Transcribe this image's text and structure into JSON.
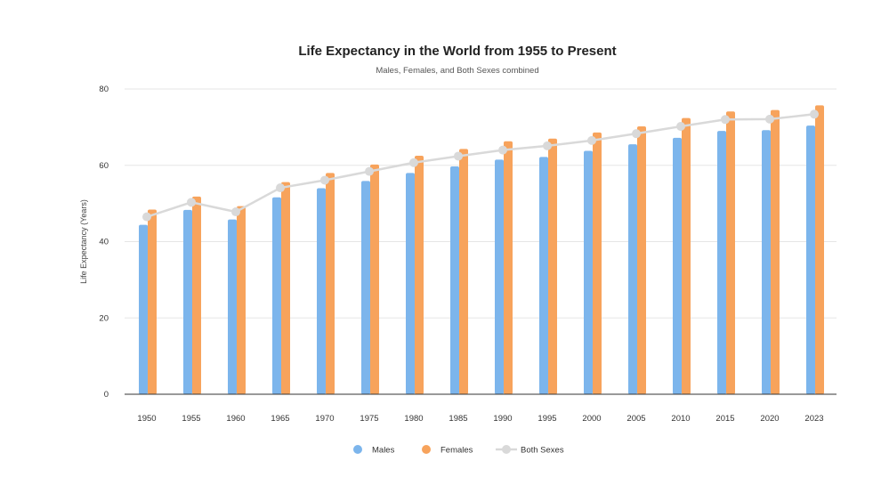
{
  "chart_data": {
    "type": "bar",
    "title": "Life Expectancy in the World from 1955 to Present",
    "subtitle": "Males, Females, and Both Sexes combined",
    "ylabel": "Life Expectancy (Years)",
    "xlabel": "",
    "ylim": [
      0,
      80
    ],
    "yticks": [
      0,
      20,
      40,
      60,
      80
    ],
    "grid": true,
    "legend_position": "bottom",
    "categories": [
      "1950",
      "1955",
      "1960",
      "1965",
      "1970",
      "1975",
      "1980",
      "1985",
      "1990",
      "1995",
      "2000",
      "2005",
      "2010",
      "2015",
      "2020",
      "2023"
    ],
    "series": [
      {
        "name": "Males",
        "kind": "bar",
        "color": "#7cb5ec",
        "values": [
          44.4,
          48.3,
          45.8,
          51.6,
          54.0,
          55.9,
          58.0,
          59.7,
          61.5,
          62.2,
          63.8,
          65.5,
          67.2,
          69.0,
          69.2,
          70.4
        ]
      },
      {
        "name": "Females",
        "kind": "bar",
        "color": "#f7a35c",
        "values": [
          48.4,
          51.8,
          49.3,
          55.6,
          58.0,
          60.2,
          62.5,
          64.3,
          66.3,
          67.0,
          68.6,
          70.2,
          72.4,
          74.1,
          74.5,
          75.7
        ]
      },
      {
        "name": "Both Sexes",
        "kind": "line",
        "color": "#d9d9d9",
        "values": [
          46.5,
          50.3,
          47.8,
          54.1,
          56.1,
          58.4,
          60.7,
          62.4,
          64.0,
          65.1,
          66.5,
          68.3,
          70.2,
          72.0,
          72.1,
          73.4
        ]
      }
    ]
  }
}
